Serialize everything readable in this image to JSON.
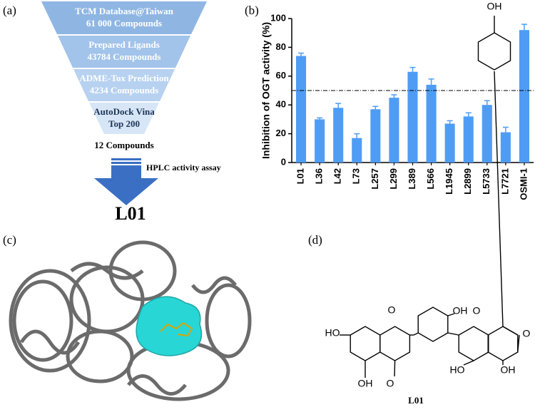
{
  "panel_labels": [
    "(a)",
    "(b)",
    "(c)",
    "(d)"
  ],
  "funnel": {
    "stages": [
      {
        "name": "TCM Database@Taiwan",
        "count": "61 000 Compounds"
      },
      {
        "name": "Prepared Ligands",
        "count": "43784 Compounds"
      },
      {
        "name": "ADME-Tox Prediction",
        "count": "4234 Compounds"
      },
      {
        "name": "AutoDock Vina",
        "count": "Top 200"
      }
    ],
    "result": "12 Compounds",
    "assay": "HPLC activity assay",
    "hit": "L01"
  },
  "chart_data": {
    "type": "bar",
    "ylabel": "Inhibition of OGT activity (%)",
    "categories": [
      "L01",
      "L36",
      "L42",
      "L73",
      "L257",
      "L299",
      "L389",
      "L566",
      "L1945",
      "L2899",
      "L5733",
      "L7721",
      "OSMI-1"
    ],
    "values": [
      74,
      30,
      38,
      17,
      37,
      45,
      63,
      54,
      27,
      32,
      40,
      21,
      92
    ],
    "errors": [
      2,
      1,
      3,
      3,
      2,
      2,
      3,
      4,
      2,
      2.5,
      3,
      3.5,
      4
    ],
    "color": "#4f9cf5",
    "ylim": [
      0,
      100
    ],
    "yticks": [
      0,
      20,
      40,
      60,
      80,
      100
    ],
    "threshold": 50
  },
  "molecule": {
    "atoms": [
      "HO",
      "O",
      "OH",
      "O",
      "OH",
      "O",
      "OH",
      "O",
      "HO",
      "OH"
    ],
    "name": "L01"
  }
}
